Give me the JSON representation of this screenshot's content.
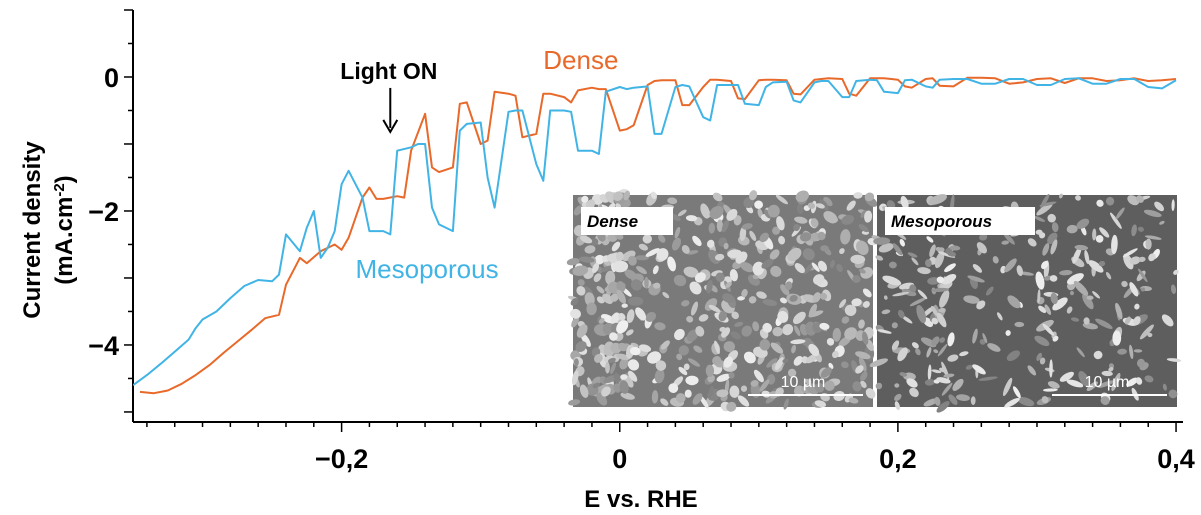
{
  "chart_data": {
    "type": "line",
    "title": "",
    "xlabel": "E vs. RHE",
    "ylabel_line1": "Current density",
    "ylabel_line2": "(mA.cm",
    "ylabel_sup": "-2",
    "ylabel_close": ")",
    "xlim": [
      -0.35,
      0.405
    ],
    "ylim": [
      -5.15,
      1.0
    ],
    "x_ticks": [
      -0.2,
      0,
      0.2,
      0.4
    ],
    "x_tick_labels": [
      "−0,2",
      "0",
      "0,2",
      "0,4"
    ],
    "y_ticks": [
      -4,
      -2,
      0
    ],
    "y_tick_labels": [
      "−4",
      "−2",
      "0"
    ],
    "grid": false,
    "annotation": {
      "text": "Light ON",
      "x": -0.165,
      "y": -0.85
    },
    "series": [
      {
        "name": "Dense",
        "color": "#E8692A",
        "x": [
          -0.345,
          -0.335,
          -0.325,
          -0.315,
          -0.305,
          -0.295,
          -0.285,
          -0.275,
          -0.265,
          -0.255,
          -0.245,
          -0.24,
          -0.23,
          -0.225,
          -0.215,
          -0.205,
          -0.2,
          -0.195,
          -0.185,
          -0.18,
          -0.175,
          -0.17,
          -0.16,
          -0.155,
          -0.15,
          -0.14,
          -0.135,
          -0.13,
          -0.12,
          -0.115,
          -0.11,
          -0.1,
          -0.095,
          -0.09,
          -0.08,
          -0.075,
          -0.07,
          -0.06,
          -0.055,
          -0.05,
          -0.04,
          -0.035,
          -0.03,
          -0.02,
          -0.015,
          -0.01,
          0.0,
          0.005,
          0.01,
          0.02,
          0.025,
          0.03,
          0.04,
          0.045,
          0.05,
          0.06,
          0.065,
          0.07,
          0.08,
          0.085,
          0.09,
          0.1,
          0.105,
          0.11,
          0.12,
          0.125,
          0.13,
          0.14,
          0.145,
          0.15,
          0.16,
          0.165,
          0.17,
          0.18,
          0.185,
          0.19,
          0.2,
          0.205,
          0.21,
          0.22,
          0.225,
          0.23,
          0.24,
          0.25,
          0.26,
          0.27,
          0.28,
          0.29,
          0.3,
          0.31,
          0.32,
          0.33,
          0.34,
          0.35,
          0.36,
          0.37,
          0.38,
          0.39,
          0.4
        ],
        "y": [
          -4.7,
          -4.72,
          -4.68,
          -4.58,
          -4.45,
          -4.3,
          -4.12,
          -3.95,
          -3.78,
          -3.6,
          -3.55,
          -3.1,
          -2.7,
          -2.78,
          -2.6,
          -2.5,
          -2.58,
          -2.4,
          -1.8,
          -1.65,
          -1.82,
          -1.82,
          -1.78,
          -1.8,
          -1.1,
          -0.55,
          -1.35,
          -1.42,
          -1.35,
          -0.4,
          -0.38,
          -1.0,
          -0.95,
          -0.22,
          -0.25,
          -0.28,
          -0.9,
          -0.85,
          -0.25,
          -0.25,
          -0.3,
          -0.38,
          -0.2,
          -0.16,
          -0.18,
          -0.18,
          -0.8,
          -0.78,
          -0.72,
          -0.12,
          -0.06,
          -0.05,
          -0.05,
          -0.42,
          -0.42,
          -0.15,
          -0.04,
          -0.04,
          -0.06,
          -0.32,
          -0.33,
          -0.05,
          -0.04,
          -0.04,
          -0.05,
          -0.25,
          -0.26,
          -0.04,
          -0.03,
          -0.02,
          -0.03,
          -0.25,
          -0.28,
          -0.02,
          -0.02,
          -0.02,
          -0.04,
          -0.14,
          -0.16,
          -0.03,
          -0.02,
          -0.13,
          -0.14,
          -0.01,
          -0.01,
          -0.02,
          -0.1,
          -0.08,
          -0.03,
          -0.02,
          -0.09,
          -0.02,
          -0.02,
          -0.06,
          -0.05,
          -0.02,
          -0.06,
          -0.05,
          -0.03
        ]
      },
      {
        "name": "Mesoporous",
        "color": "#41B4E6",
        "x": [
          -0.35,
          -0.34,
          -0.33,
          -0.32,
          -0.31,
          -0.305,
          -0.3,
          -0.29,
          -0.28,
          -0.27,
          -0.26,
          -0.25,
          -0.245,
          -0.24,
          -0.23,
          -0.225,
          -0.22,
          -0.215,
          -0.21,
          -0.205,
          -0.2,
          -0.195,
          -0.185,
          -0.18,
          -0.17,
          -0.165,
          -0.16,
          -0.15,
          -0.145,
          -0.14,
          -0.135,
          -0.13,
          -0.12,
          -0.115,
          -0.11,
          -0.1,
          -0.095,
          -0.09,
          -0.08,
          -0.075,
          -0.07,
          -0.06,
          -0.055,
          -0.05,
          -0.04,
          -0.035,
          -0.03,
          -0.02,
          -0.015,
          -0.01,
          0.0,
          0.005,
          0.01,
          0.02,
          0.025,
          0.03,
          0.04,
          0.045,
          0.05,
          0.06,
          0.065,
          0.07,
          0.08,
          0.085,
          0.09,
          0.1,
          0.105,
          0.11,
          0.12,
          0.125,
          0.13,
          0.14,
          0.145,
          0.15,
          0.16,
          0.165,
          0.17,
          0.18,
          0.185,
          0.19,
          0.2,
          0.205,
          0.21,
          0.22,
          0.225,
          0.23,
          0.24,
          0.25,
          0.26,
          0.27,
          0.28,
          0.29,
          0.3,
          0.31,
          0.32,
          0.33,
          0.34,
          0.35,
          0.36,
          0.37,
          0.38,
          0.39,
          0.4
        ],
        "y": [
          -4.6,
          -4.45,
          -4.28,
          -4.1,
          -3.92,
          -3.75,
          -3.62,
          -3.5,
          -3.3,
          -3.12,
          -3.03,
          -3.05,
          -2.95,
          -2.35,
          -2.6,
          -2.25,
          -2.0,
          -2.7,
          -2.55,
          -2.3,
          -1.6,
          -1.4,
          -1.8,
          -2.3,
          -2.3,
          -2.35,
          -1.1,
          -1.05,
          -1.0,
          -1.0,
          -1.95,
          -2.2,
          -2.3,
          -0.8,
          -0.7,
          -0.68,
          -1.5,
          -1.95,
          -0.52,
          -0.5,
          -0.5,
          -1.3,
          -1.55,
          -0.5,
          -0.5,
          -0.52,
          -1.1,
          -1.1,
          -1.15,
          -0.22,
          -0.15,
          -0.18,
          -0.16,
          -0.14,
          -0.85,
          -0.85,
          -0.15,
          -0.12,
          -0.14,
          -0.6,
          -0.65,
          -0.12,
          -0.12,
          -0.12,
          -0.4,
          -0.42,
          -0.15,
          -0.08,
          -0.07,
          -0.35,
          -0.38,
          -0.08,
          -0.06,
          -0.06,
          -0.3,
          -0.3,
          -0.06,
          -0.04,
          -0.05,
          -0.22,
          -0.24,
          -0.05,
          -0.04,
          -0.14,
          -0.16,
          -0.04,
          -0.03,
          -0.03,
          -0.1,
          -0.1,
          -0.03,
          -0.03,
          -0.12,
          -0.12,
          -0.03,
          -0.02,
          -0.1,
          -0.1,
          -0.03,
          -0.03,
          -0.15,
          -0.17,
          -0.05
        ]
      }
    ],
    "series_labels": [
      {
        "text": "Dense",
        "x": -0.055,
        "y": 0.12,
        "color": "#E8692A"
      },
      {
        "text": "Mesoporous",
        "x": -0.19,
        "y": -3.0,
        "color": "#41B4E6"
      }
    ],
    "insets": [
      {
        "tag": "Dense",
        "scale_bar": "10 µm",
        "fill": "#7a7a7a",
        "seed": 7
      },
      {
        "tag": "Mesoporous",
        "scale_bar": "10 µm",
        "fill": "#5e5e5e",
        "seed": 19
      }
    ]
  }
}
